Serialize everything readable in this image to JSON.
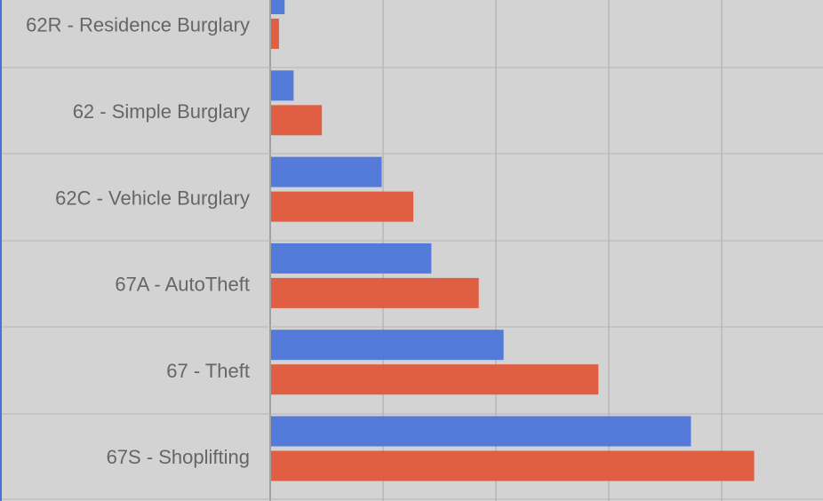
{
  "chart_data": {
    "type": "bar",
    "orientation": "horizontal",
    "categories": [
      "62R - Residence Burglary",
      "62 - Simple Burglary",
      "62C - Vehicle Burglary",
      "67A - AutoTheft",
      "67 - Theft",
      "67S - Shoplifting"
    ],
    "series": [
      {
        "values": [
          0.12,
          0.2,
          0.98,
          1.42,
          2.06,
          3.72
        ]
      },
      {
        "values": [
          0.07,
          0.45,
          1.26,
          1.84,
          2.9,
          4.28
        ]
      }
    ],
    "series_colors": [
      "#4f78da",
      "#e05a3c"
    ],
    "grid": true,
    "xlim": [
      0,
      5
    ]
  }
}
